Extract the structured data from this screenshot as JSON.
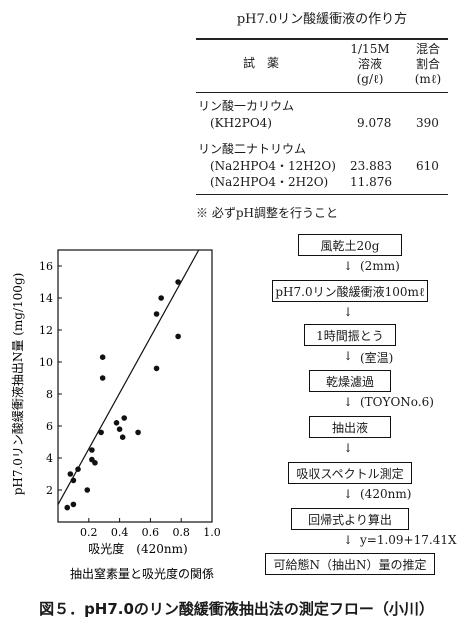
{
  "recipe": {
    "title": "pH7.0リン酸緩衝液の作り方",
    "headers": {
      "reagent": "試　薬",
      "concentration": [
        "1/15M",
        "溶液",
        "(g/ℓ)"
      ],
      "ratio": [
        "混合",
        "割合",
        "(mℓ)"
      ]
    },
    "rows": [
      {
        "name": "リン酸一カリウム",
        "formula": "(KH2PO4)",
        "conc": "9.078",
        "ratio": "390"
      },
      {
        "name": "リン酸二ナトリウム",
        "formula": "(Na2HPO4・12H2O)",
        "conc": "23.883",
        "ratio": "610",
        "formula2": "(Na2HPO4・2H2O)",
        "conc2": "11.876"
      }
    ],
    "note": "※ 必ずpH調整を行うこと"
  },
  "chart_data": {
    "type": "scatter",
    "title": "",
    "xlabel": "吸光度　(420nm)",
    "ylabel": "pH7.0リン酸緩衝液抽出N量 (mg/100g)",
    "xlim": [
      0,
      1.0
    ],
    "ylim": [
      0,
      17
    ],
    "x_ticks": [
      "0.2",
      "0.4",
      "0.6",
      "0.8",
      "1.0"
    ],
    "y_ticks": [
      "2",
      "4",
      "6",
      "8",
      "10",
      "12",
      "14",
      "16"
    ],
    "points": [
      {
        "x": 0.06,
        "y": 0.9
      },
      {
        "x": 0.08,
        "y": 3.0
      },
      {
        "x": 0.1,
        "y": 1.1
      },
      {
        "x": 0.1,
        "y": 2.6
      },
      {
        "x": 0.13,
        "y": 3.3
      },
      {
        "x": 0.19,
        "y": 2.0
      },
      {
        "x": 0.22,
        "y": 3.9
      },
      {
        "x": 0.22,
        "y": 4.5
      },
      {
        "x": 0.24,
        "y": 3.7
      },
      {
        "x": 0.28,
        "y": 5.6
      },
      {
        "x": 0.29,
        "y": 10.3
      },
      {
        "x": 0.29,
        "y": 9.0
      },
      {
        "x": 0.38,
        "y": 6.2
      },
      {
        "x": 0.4,
        "y": 5.8
      },
      {
        "x": 0.42,
        "y": 5.3
      },
      {
        "x": 0.43,
        "y": 6.5
      },
      {
        "x": 0.52,
        "y": 5.6
      },
      {
        "x": 0.64,
        "y": 13.0
      },
      {
        "x": 0.64,
        "y": 9.6
      },
      {
        "x": 0.67,
        "y": 14.0
      },
      {
        "x": 0.78,
        "y": 15.0
      },
      {
        "x": 0.78,
        "y": 11.6
      }
    ],
    "fit_line": {
      "intercept": 1.09,
      "slope": 17.41
    },
    "caption": "抽出窒素量と吸光度の関係"
  },
  "flow": {
    "steps": [
      "風乾土20g",
      "pH7.0リン酸緩衝液100mℓ",
      "1時間振とう",
      "乾燥濾過",
      "抽出液",
      "吸収スペクトル測定",
      "回帰式より算出",
      "可給態N（抽出N）量の推定"
    ],
    "labels": [
      "(2mm)",
      "(室温)",
      "(TOYONo.6)",
      "",
      "(420nm)",
      "y=1.09+17.41X"
    ],
    "arrow_glyph": "↓"
  },
  "figure_caption": "図５．pH7.0のリン酸緩衝液抽出法の測定フロー（小川）"
}
